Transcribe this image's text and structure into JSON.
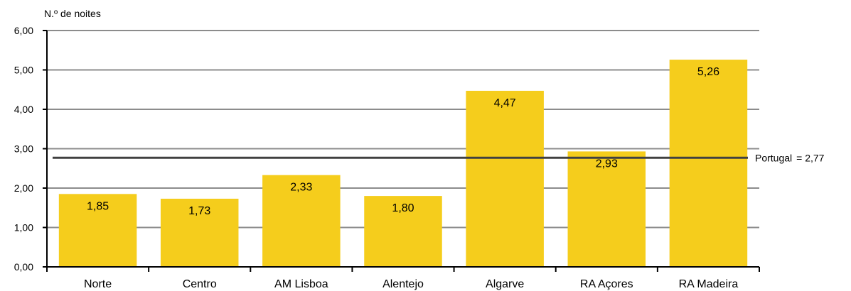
{
  "chart_data": {
    "type": "bar",
    "ylabel": "N.º de noites",
    "categories": [
      "Norte",
      "Centro",
      "AM Lisboa",
      "Alentejo",
      "Algarve",
      "RA Açores",
      "RA Madeira"
    ],
    "values": [
      1.85,
      1.73,
      2.33,
      1.8,
      4.47,
      2.93,
      5.26
    ],
    "value_labels": [
      "1,85",
      "1,73",
      "2,33",
      "1,80",
      "4,47",
      "2,93",
      "5,26"
    ],
    "ylim": [
      0,
      6
    ],
    "yticks": [
      0,
      1,
      2,
      3,
      4,
      5,
      6
    ],
    "ytick_labels": [
      "0,00",
      "1,00",
      "2,00",
      "3,00",
      "4,00",
      "5,00",
      "6,00"
    ],
    "grid": true,
    "reference_line": {
      "value": 2.77,
      "name": "Portugal",
      "label": "Portugal",
      "value_label": "= 2,77"
    }
  },
  "colors": {
    "bar": "#f5cd1c",
    "grid": "#8c8c8c",
    "reference_line": "#404040",
    "axis": "#000000"
  }
}
